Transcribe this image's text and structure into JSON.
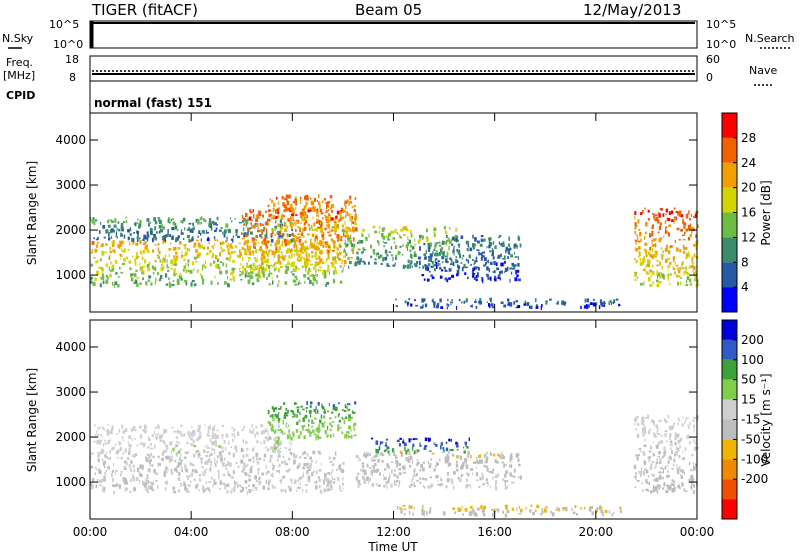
{
  "header": {
    "station": "TIGER (fitACF)",
    "beam": "Beam 05",
    "date": "12/May/2013"
  },
  "panels": {
    "nsky": {
      "label": "N.Sky",
      "ticks": [
        "10^5",
        "10^0"
      ]
    },
    "nsearch": {
      "label": "N.Search",
      "ticks": [
        "10^5",
        "10^0"
      ]
    },
    "freq": {
      "label_line1": "Freq.",
      "label_line2": "[MHz]",
      "ticks": [
        "18",
        "8"
      ]
    },
    "nave": {
      "label": "Nave",
      "ticks": [
        "60",
        "0"
      ]
    },
    "cpid": {
      "label": "CPID",
      "text": "normal (fast) 151"
    }
  },
  "colors": {
    "power": [
      "#0000ff",
      "#2859a8",
      "#3a8c6a",
      "#6cbe42",
      "#d4d400",
      "#f2a000",
      "#f26000",
      "#ff0000"
    ],
    "velocity": [
      "#0000dd",
      "#2e5bc8",
      "#3fa13a",
      "#7fcf4a",
      "#cfcfcf",
      "#bdbdbd",
      "#f2b400",
      "#f28a00",
      "#f24f00",
      "#ff0000"
    ]
  },
  "chart_data": [
    {
      "type": "heatmap",
      "parameter": "power",
      "ylabel": "Slant Range [km]",
      "xlabel": "",
      "xticks": [
        "00:00",
        "04:00",
        "08:00",
        "12:00",
        "16:00",
        "20:00",
        "00:00"
      ],
      "yticks": [
        "1000",
        "2000",
        "3000",
        "4000"
      ],
      "ylim": [
        180,
        4600
      ],
      "xlim_hours": [
        0,
        24
      ],
      "colorbar": {
        "label": "Power [dB]",
        "ticks": [
          "4",
          "8",
          "12",
          "16",
          "20",
          "24",
          "28"
        ],
        "range": [
          0,
          32
        ]
      },
      "regions": [
        {
          "t0": 0,
          "t1": 10.0,
          "r0": 800,
          "r1": 1800,
          "v0": 22,
          "v1": 12
        },
        {
          "t0": 0,
          "t1": 8.0,
          "r0": 1800,
          "r1": 2300,
          "v0": 12,
          "v1": 6
        },
        {
          "t0": 6.0,
          "t1": 10.5,
          "r0": 1100,
          "r1": 2500,
          "v0": 28,
          "v1": 18
        },
        {
          "t0": 7.0,
          "t1": 10.5,
          "r0": 2000,
          "r1": 2800,
          "v0": 26,
          "v1": 18
        },
        {
          "t0": 10.0,
          "t1": 14.5,
          "r0": 1200,
          "r1": 2100,
          "v0": 18,
          "v1": 8
        },
        {
          "t0": 13.0,
          "t1": 17.0,
          "r0": 900,
          "r1": 1900,
          "v0": 10,
          "v1": 4
        },
        {
          "t0": 12.0,
          "t1": 21.0,
          "r0": 300,
          "r1": 500,
          "v0": 8,
          "v1": 4
        },
        {
          "t0": 21.5,
          "t1": 24.0,
          "r0": 800,
          "r1": 2500,
          "v0": 28,
          "v1": 16
        }
      ]
    },
    {
      "type": "heatmap",
      "parameter": "velocity",
      "ylabel": "Slant Range [km]",
      "xlabel": "Time UT",
      "xticks": [
        "00:00",
        "04:00",
        "08:00",
        "12:00",
        "16:00",
        "20:00",
        "00:00"
      ],
      "yticks": [
        "1000",
        "2000",
        "3000",
        "4000"
      ],
      "ylim": [
        180,
        4600
      ],
      "xlim_hours": [
        0,
        24
      ],
      "colorbar": {
        "label": "Velocity [m s⁻¹]",
        "ticks": [
          "200",
          "100",
          "50",
          "15",
          "-15",
          "-50",
          "-100",
          "-200"
        ],
        "range": [
          -250,
          250
        ]
      },
      "regions": [
        {
          "t0": 0,
          "t1": 10.0,
          "r0": 800,
          "r1": 1700,
          "v0": -5,
          "v1": 5
        },
        {
          "t0": 0,
          "t1": 8.0,
          "r0": 1700,
          "r1": 2300,
          "v0": 20,
          "v1": 40
        },
        {
          "t0": 7.0,
          "t1": 10.5,
          "r0": 2000,
          "r1": 2800,
          "v0": 150,
          "v1": 60
        },
        {
          "t0": 11.0,
          "t1": 15.0,
          "r0": 1700,
          "r1": 2000,
          "v0": 220,
          "v1": 120
        },
        {
          "t0": 10.5,
          "t1": 17.0,
          "r0": 900,
          "r1": 1700,
          "v0": -40,
          "v1": 10
        },
        {
          "t0": 12.0,
          "t1": 21.0,
          "r0": 300,
          "r1": 500,
          "v0": -60,
          "v1": -20
        },
        {
          "t0": 21.5,
          "t1": 24.0,
          "r0": 800,
          "r1": 2500,
          "v0": 30,
          "v1": -30
        }
      ]
    }
  ]
}
